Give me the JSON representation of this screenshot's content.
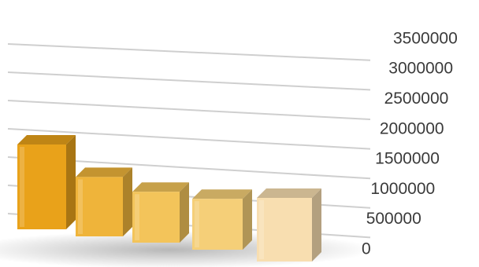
{
  "chart_data": {
    "type": "bar",
    "categories": [
      "",
      "",
      "",
      "",
      ""
    ],
    "values": [
      2000000,
      1400000,
      1200000,
      1200000,
      1500000
    ],
    "ylim": [
      0,
      3500000
    ],
    "y_ticks": [
      "0",
      "500000",
      "1000000",
      "1500000",
      "2000000",
      "2500000",
      "3000000",
      "3500000"
    ],
    "grid": true,
    "legend": "none",
    "colors": {
      "bar_1": "#e9a21a",
      "bar_2": "#efb43a",
      "bar_3": "#f3c45a",
      "bar_4": "#f5cf78",
      "bar_5": "#f8deb0"
    }
  }
}
